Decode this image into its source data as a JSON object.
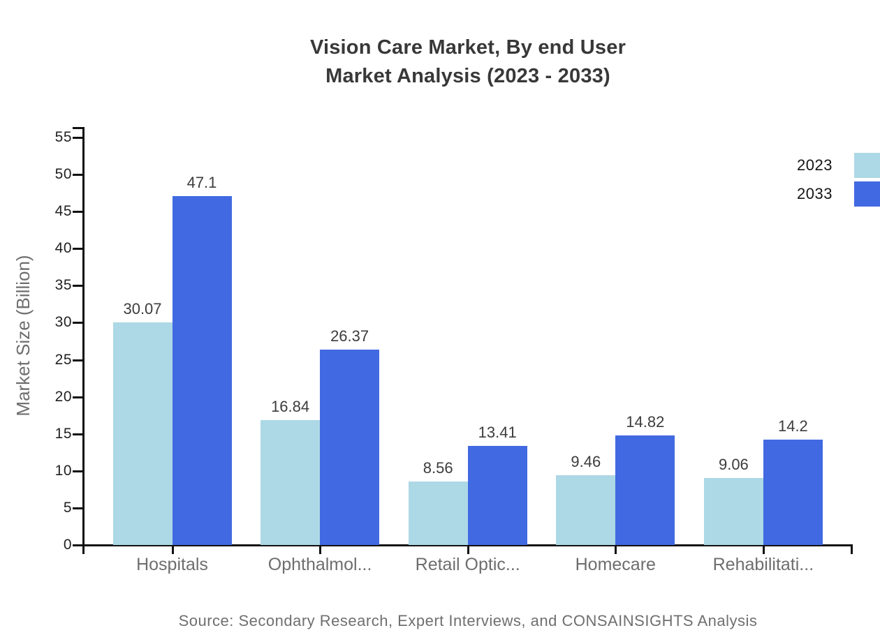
{
  "title": {
    "line1": "Vision Care Market, By end User",
    "line2": "Market Analysis (2023 - 2033)"
  },
  "source_note": "Source: Secondary Research, Expert Interviews, and CONSAINSIGHTS Analysis",
  "chart_data": {
    "type": "bar",
    "title": "Vision Care Market, By end User Market Analysis (2023 - 2033)",
    "categories": [
      "Hospitals",
      "Ophthalmol...",
      "Retail Optic...",
      "Homecare",
      "Rehabilitati..."
    ],
    "series": [
      {
        "name": "2023",
        "color": "#ADD8E6",
        "values": [
          30.07,
          16.84,
          8.56,
          9.46,
          9.06
        ]
      },
      {
        "name": "2033",
        "color": "#4169E1",
        "values": [
          47.1,
          26.37,
          13.41,
          14.82,
          14.2
        ]
      }
    ],
    "xlabel": "",
    "ylabel": "Market Size (Billion)",
    "ylim": [
      0,
      55
    ],
    "ytick_step": 5,
    "yticks": [
      0,
      5,
      10,
      15,
      20,
      25,
      30,
      35,
      40,
      45,
      50,
      55
    ],
    "grid": false,
    "value_labels": true,
    "legend_position": "top-right"
  },
  "colors": {
    "background": "#ffffff",
    "axis": "#111111",
    "tick_label": "#222222",
    "category_label": "#6e6e6e",
    "value_label": "#3c3c3c",
    "title": "#383838",
    "source": "#6f6f6f",
    "legend_label": "#151515",
    "series_2023": "#ADD8E6",
    "series_2033": "#4169E1"
  }
}
